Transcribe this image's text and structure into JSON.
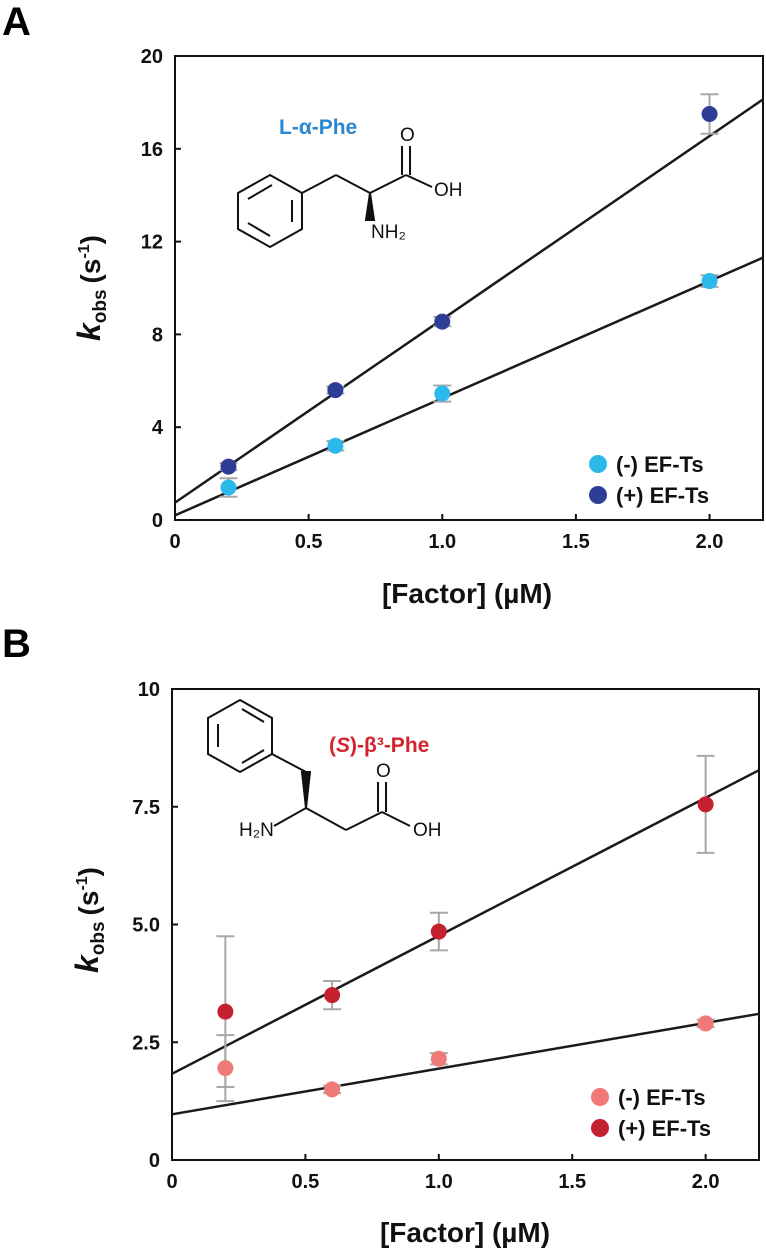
{
  "colors": {
    "panelA_minus": "#2bb8ea",
    "panelA_plus": "#2e3d96",
    "panelB_minus": "#f07a78",
    "panelB_plus": "#c4202f",
    "errorbar": "#a8a8a8",
    "fitline": "#1a1a1a"
  },
  "chart_data": [
    {
      "type": "scatter",
      "panel_label": "A",
      "xlabel": "[Factor] (µM)",
      "ylabel": {
        "k": "k",
        "sub": "obs",
        "unit_open": "(s",
        "sup": "-1",
        "unit_close": ")"
      },
      "xlim": [
        0,
        2.2
      ],
      "ylim": [
        0,
        20
      ],
      "x_ticks": [
        0,
        0.5,
        1.0,
        1.5,
        2.0
      ],
      "x_tick_labels": [
        "0",
        "0.5",
        "1.0",
        "1.5",
        "2.0"
      ],
      "y_ticks": [
        0,
        4,
        8,
        12,
        16,
        20
      ],
      "y_tick_labels": [
        "0",
        "4",
        "8",
        "12",
        "16",
        "20"
      ],
      "legend_position": "bottom-right",
      "compound_label": "L-α-Phe",
      "compound_atoms": {
        "o": "O",
        "oh": "OH",
        "nh2": "NH₂"
      },
      "series": [
        {
          "name": "(-) EF-Ts",
          "color_key": "panelA_minus",
          "x": [
            0.2,
            0.6,
            1.0,
            2.0
          ],
          "y": [
            1.4,
            3.2,
            5.45,
            10.3
          ],
          "err": [
            0.4,
            0.2,
            0.35,
            0.25
          ],
          "fit": {
            "intercept": 0.2,
            "slope": 5.05
          }
        },
        {
          "name": "(+) EF-Ts",
          "color_key": "panelA_plus",
          "x": [
            0.2,
            0.6,
            1.0,
            2.0
          ],
          "y": [
            2.3,
            5.6,
            8.55,
            17.5
          ],
          "err": [
            0.15,
            0.15,
            0.2,
            0.85
          ],
          "fit": {
            "intercept": 0.75,
            "slope": 7.9
          }
        }
      ]
    },
    {
      "type": "scatter",
      "panel_label": "B",
      "xlabel": "[Factor] (µM)",
      "ylabel": {
        "k": "k",
        "sub": "obs",
        "unit_open": "(s",
        "sup": "-1",
        "unit_close": ")"
      },
      "xlim": [
        0,
        2.2
      ],
      "ylim": [
        0,
        10
      ],
      "x_ticks": [
        0,
        0.5,
        1.0,
        1.5,
        2.0
      ],
      "x_tick_labels": [
        "0",
        "0.5",
        "1.0",
        "1.5",
        "2.0"
      ],
      "y_ticks": [
        0,
        2.5,
        5.0,
        7.5,
        10
      ],
      "y_tick_labels": [
        "0",
        "2.5",
        "5.0",
        "7.5",
        "10"
      ],
      "legend_position": "bottom-right",
      "compound_label": {
        "open": "(",
        "italic": "S",
        "rest": ")-β³-Phe"
      },
      "compound_atoms": {
        "o": "O",
        "oh": "OH",
        "h2n": "H₂N"
      },
      "series": [
        {
          "name": "(-) EF-Ts",
          "color_key": "panelB_minus",
          "x": [
            0.2,
            0.6,
            1.0,
            2.0
          ],
          "y": [
            1.95,
            1.5,
            2.15,
            2.9
          ],
          "err": [
            0.7,
            0.08,
            0.12,
            0.08
          ],
          "fit": {
            "intercept": 0.97,
            "slope": 0.97
          }
        },
        {
          "name": "(+) EF-Ts",
          "color_key": "panelB_plus",
          "x": [
            0.2,
            0.6,
            1.0,
            2.0
          ],
          "y": [
            3.15,
            3.5,
            4.85,
            7.55
          ],
          "err": [
            1.6,
            0.3,
            0.4,
            1.03
          ],
          "fit": {
            "intercept": 1.83,
            "slope": 2.93
          }
        }
      ]
    }
  ]
}
